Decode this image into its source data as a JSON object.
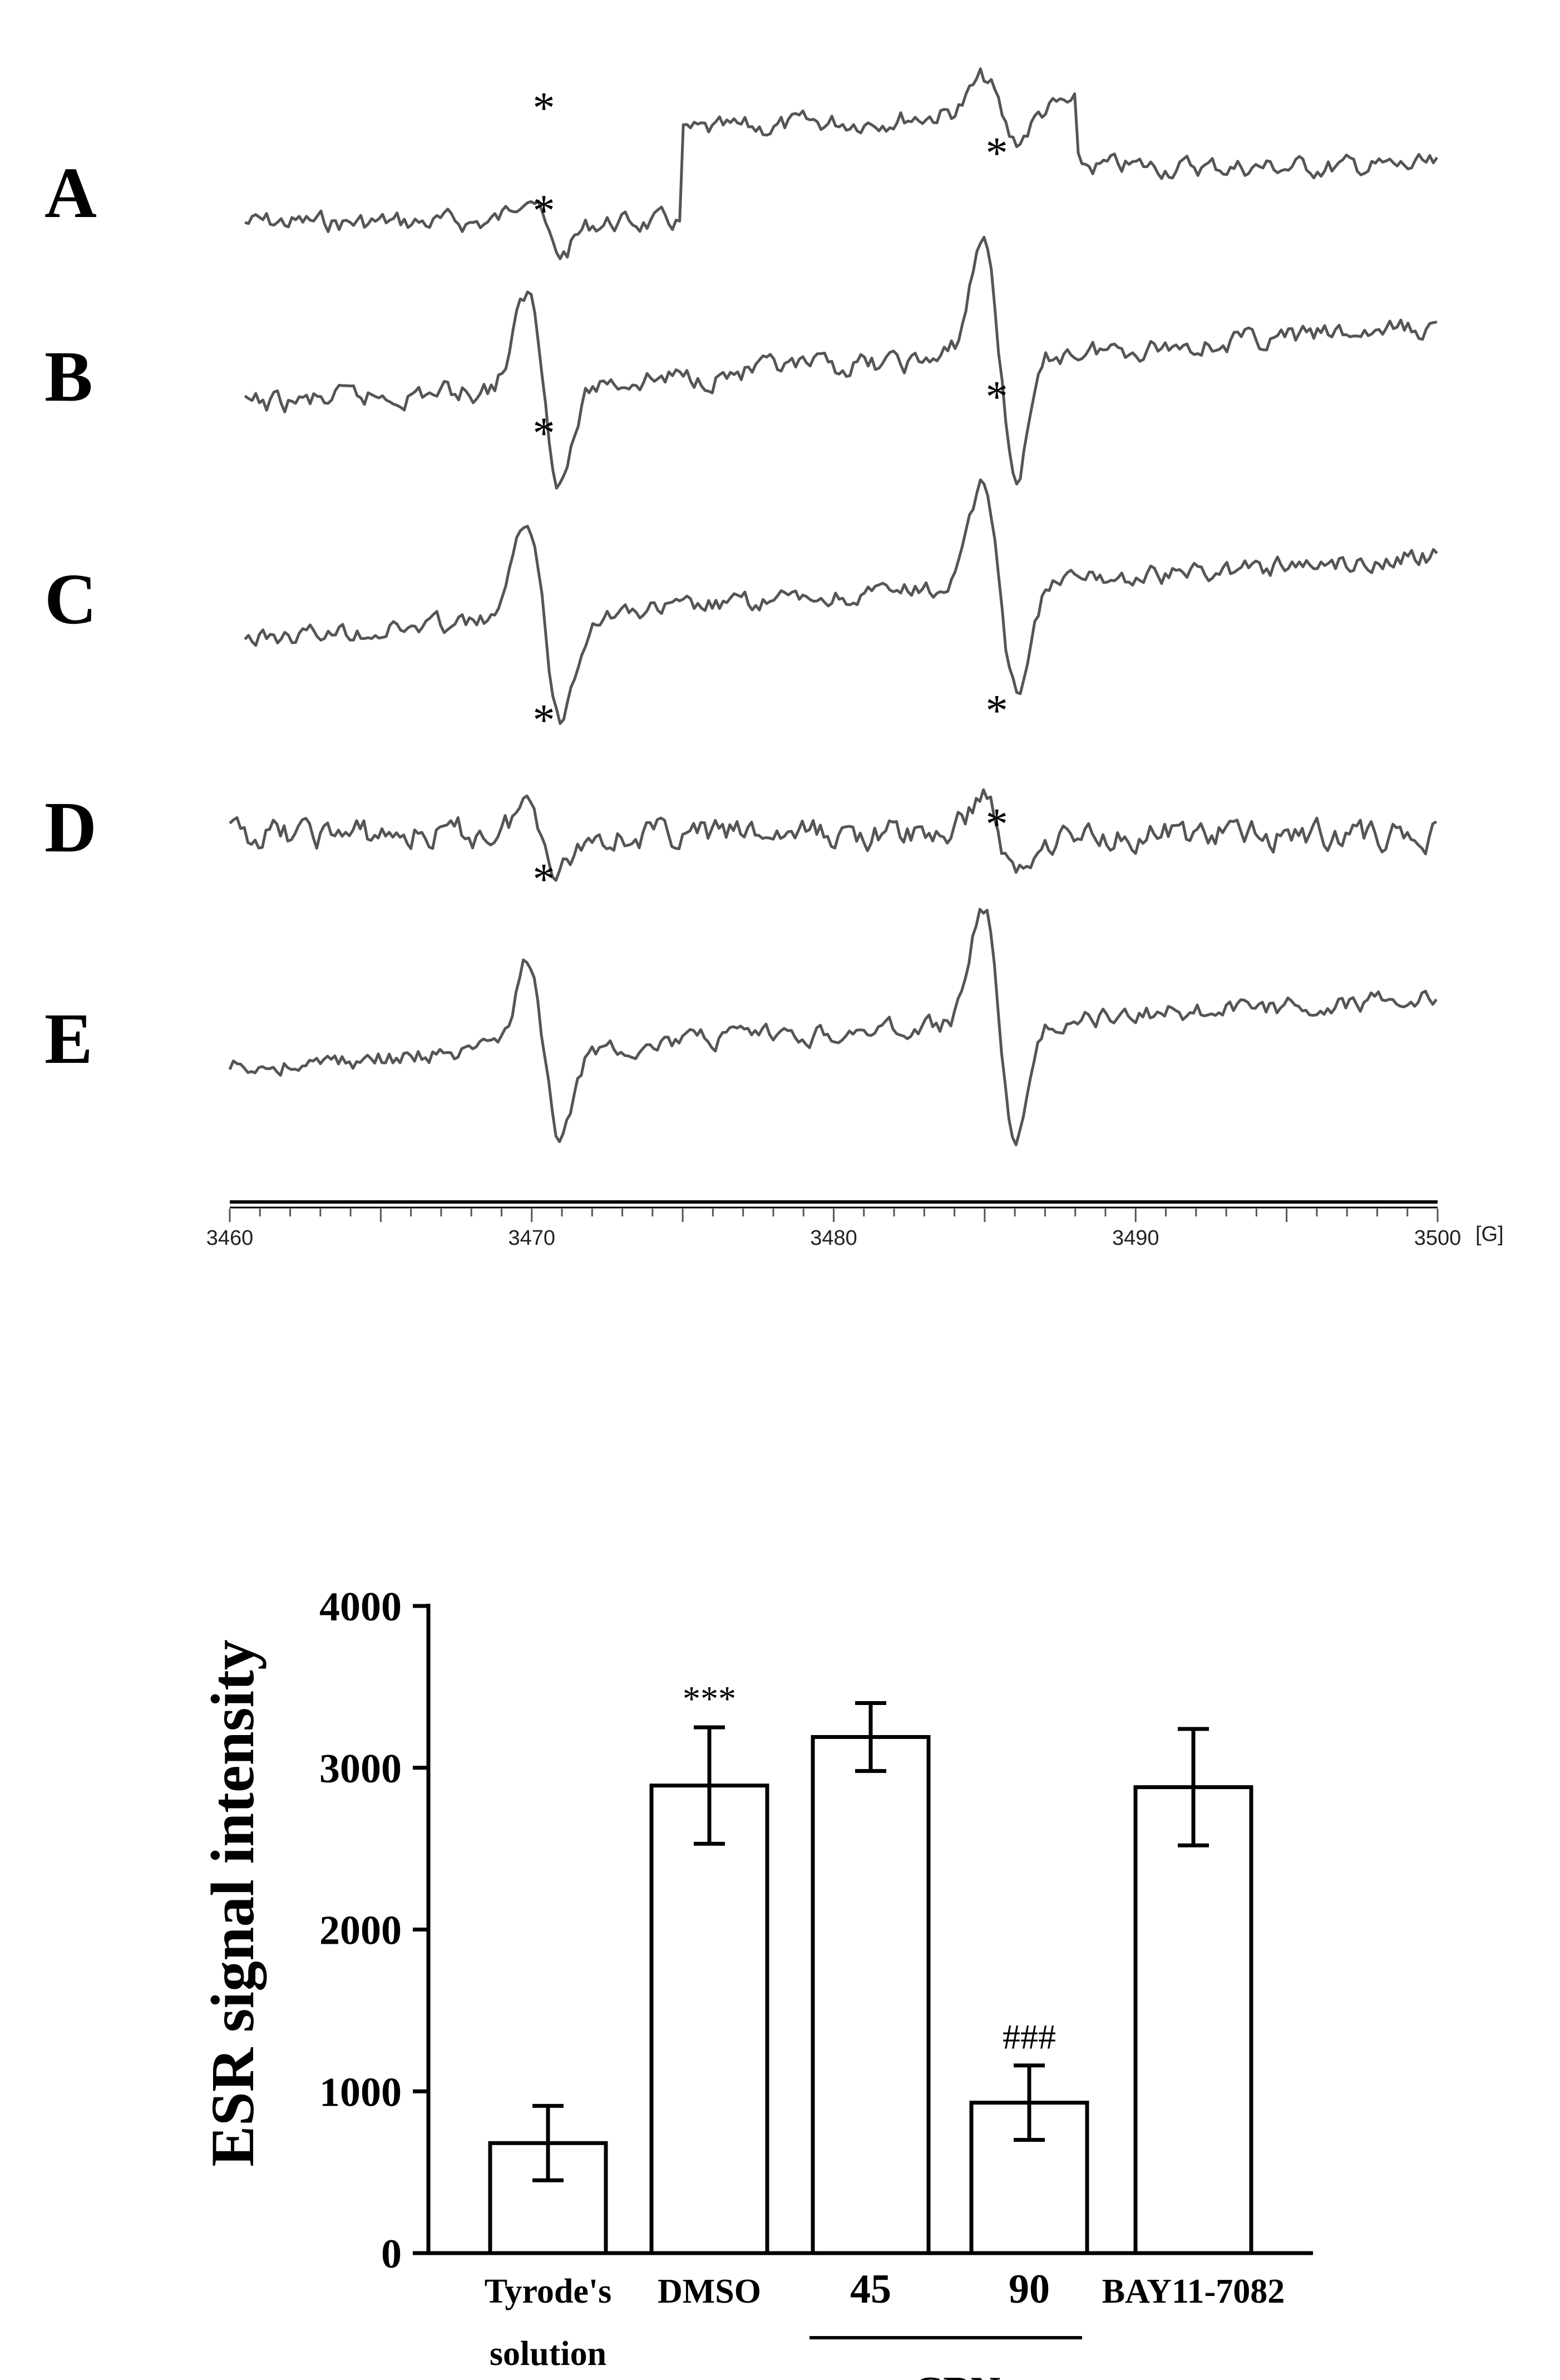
{
  "chart_data": [
    {
      "type": "line",
      "title": "",
      "xlabel": "",
      "x_unit": "[G]",
      "xlim": [
        3460,
        3500
      ],
      "xticks": [
        3460,
        3470,
        3480,
        3490,
        3500
      ],
      "traces": [
        {
          "label": "A",
          "peaks_marked_at": [
            3470,
            3485
          ]
        },
        {
          "label": "B",
          "peaks_marked_at": [
            3470,
            3485
          ]
        },
        {
          "label": "C",
          "peaks_marked_at": [
            3470,
            3485
          ]
        },
        {
          "label": "D",
          "peaks_marked_at": [
            3470,
            3485
          ]
        },
        {
          "label": "E",
          "peaks_marked_at": [
            3470,
            3485
          ]
        }
      ],
      "peak_marker": "*"
    },
    {
      "type": "bar",
      "title": "",
      "ylabel": "ESR signal intensity",
      "ylim": [
        0,
        4000
      ],
      "yticks": [
        0,
        1000,
        2000,
        3000,
        4000
      ],
      "categories": [
        {
          "line1": "Tyrode's",
          "line2": "solution"
        },
        {
          "line1": "DMSO",
          "line2": ""
        },
        {
          "line1": "45",
          "line2": ""
        },
        {
          "line1": "90",
          "line2": ""
        },
        {
          "line1": "BAY11-7082",
          "line2": ""
        }
      ],
      "group_label": "CBN",
      "values": [
        680,
        2890,
        3190,
        930,
        2880
      ],
      "errors": [
        230,
        360,
        210,
        230,
        360
      ],
      "annotations": [
        "",
        "***",
        "",
        "###",
        ""
      ]
    }
  ]
}
